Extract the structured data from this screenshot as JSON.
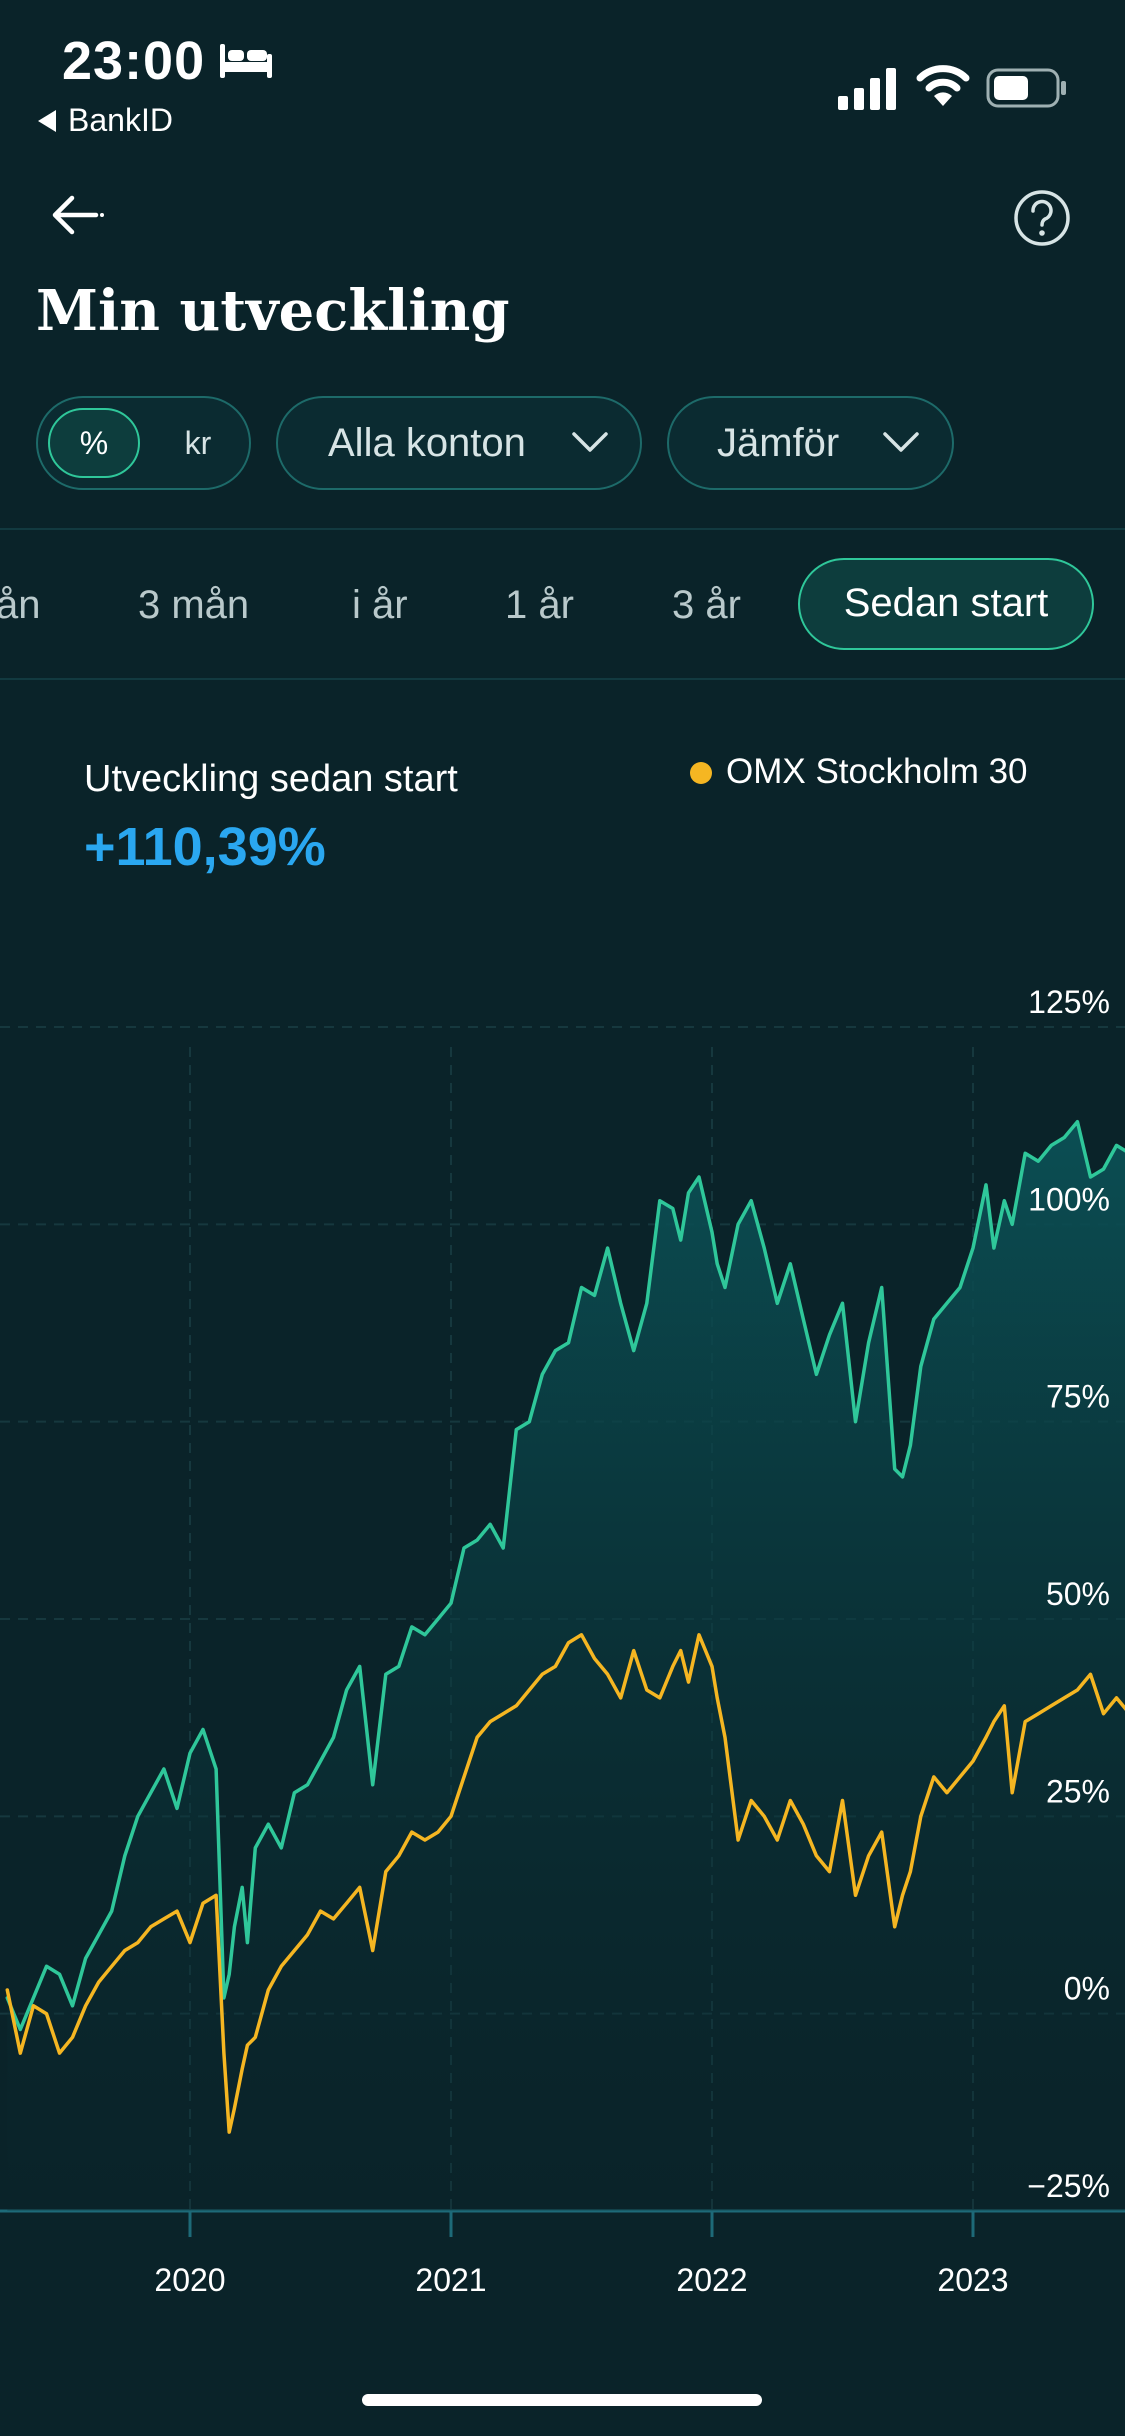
{
  "status_bar": {
    "time": "23:00",
    "back_app": "BankID",
    "icons": [
      "bed-icon",
      "signal-icon",
      "wifi-icon",
      "battery-icon"
    ]
  },
  "header": {
    "title": "Min utveckling",
    "icons": [
      "back-arrow-icon",
      "help-icon"
    ]
  },
  "filters": {
    "unit_options": [
      "%",
      "kr"
    ],
    "unit_selected": "%",
    "accounts": "Alla konton",
    "compare": "Jämför"
  },
  "period_tabs": {
    "items": [
      "ån",
      "3 mån",
      "i år",
      "1 år",
      "3 år",
      "Sedan start"
    ],
    "selected": "Sedan start"
  },
  "summary": {
    "label": "Utveckling sedan start",
    "value": "+110,39%"
  },
  "colors": {
    "background": "#0a2329",
    "portfolio_line": "#2fc79a",
    "benchmark_line": "#f5b622",
    "value_text": "#2aa7f0"
  },
  "chart_data": {
    "type": "line",
    "title": "",
    "xlabel": "",
    "ylabel": "",
    "ylim": [
      -25,
      125
    ],
    "y_ticks": [
      "125%",
      "100%",
      "75%",
      "50%",
      "25%",
      "0%",
      "−25%"
    ],
    "x_ticks": [
      "2020",
      "2021",
      "2022",
      "2023"
    ],
    "xlim": [
      2019.3,
      2023.6
    ],
    "grid": true,
    "legend": "top-right",
    "series": [
      {
        "name": "",
        "color": "#2fc79a",
        "fill": true,
        "x": [
          2019.3,
          2019.35,
          2019.4,
          2019.45,
          2019.5,
          2019.55,
          2019.6,
          2019.65,
          2019.7,
          2019.75,
          2019.8,
          2019.85,
          2019.9,
          2019.95,
          2020.0,
          2020.05,
          2020.1,
          2020.13,
          2020.15,
          2020.17,
          2020.2,
          2020.22,
          2020.25,
          2020.3,
          2020.35,
          2020.4,
          2020.45,
          2020.5,
          2020.55,
          2020.6,
          2020.65,
          2020.7,
          2020.75,
          2020.8,
          2020.85,
          2020.9,
          2020.95,
          2021.0,
          2021.05,
          2021.1,
          2021.15,
          2021.2,
          2021.25,
          2021.3,
          2021.35,
          2021.4,
          2021.45,
          2021.5,
          2021.55,
          2021.6,
          2021.65,
          2021.7,
          2021.75,
          2021.8,
          2021.85,
          2021.88,
          2021.91,
          2021.95,
          2022.0,
          2022.02,
          2022.05,
          2022.1,
          2022.15,
          2022.2,
          2022.25,
          2022.3,
          2022.35,
          2022.4,
          2022.45,
          2022.5,
          2022.55,
          2022.6,
          2022.65,
          2022.7,
          2022.73,
          2022.76,
          2022.8,
          2022.85,
          2022.9,
          2022.95,
          2023.0,
          2023.05,
          2023.08,
          2023.12,
          2023.15,
          2023.2,
          2023.25,
          2023.3,
          2023.35,
          2023.4,
          2023.45,
          2023.5,
          2023.55,
          2023.6
        ],
        "y": [
          2,
          -2,
          2,
          6,
          5,
          1,
          7,
          10,
          13,
          20,
          25,
          28,
          31,
          26,
          33,
          36,
          31,
          2,
          5,
          11,
          16,
          9,
          21,
          24,
          21,
          28,
          29,
          32,
          35,
          41,
          44,
          29,
          43,
          44,
          49,
          48,
          50,
          52,
          59,
          60,
          62,
          59,
          74,
          75,
          81,
          84,
          85,
          92,
          91,
          97,
          90,
          84,
          90,
          103,
          102,
          98,
          104,
          106,
          99,
          95,
          92,
          100,
          103,
          97,
          90,
          95,
          88,
          81,
          86,
          90,
          75,
          85,
          92,
          69,
          68,
          72,
          82,
          88,
          90,
          92,
          97,
          105,
          97,
          103,
          100,
          109,
          108,
          110,
          111,
          113,
          106,
          107,
          110,
          109
        ]
      },
      {
        "name": "OMX Stockholm 30",
        "color": "#f5b622",
        "fill": false,
        "x": [
          2019.3,
          2019.35,
          2019.4,
          2019.45,
          2019.5,
          2019.55,
          2019.6,
          2019.65,
          2019.7,
          2019.75,
          2019.8,
          2019.85,
          2019.9,
          2019.95,
          2020.0,
          2020.05,
          2020.1,
          2020.13,
          2020.15,
          2020.17,
          2020.2,
          2020.22,
          2020.25,
          2020.3,
          2020.35,
          2020.4,
          2020.45,
          2020.5,
          2020.55,
          2020.6,
          2020.65,
          2020.7,
          2020.75,
          2020.8,
          2020.85,
          2020.9,
          2020.95,
          2021.0,
          2021.05,
          2021.1,
          2021.15,
          2021.2,
          2021.25,
          2021.3,
          2021.35,
          2021.4,
          2021.45,
          2021.5,
          2021.55,
          2021.6,
          2021.65,
          2021.7,
          2021.75,
          2021.8,
          2021.85,
          2021.88,
          2021.91,
          2021.95,
          2022.0,
          2022.02,
          2022.05,
          2022.1,
          2022.15,
          2022.2,
          2022.25,
          2022.3,
          2022.35,
          2022.4,
          2022.45,
          2022.5,
          2022.55,
          2022.6,
          2022.65,
          2022.7,
          2022.73,
          2022.76,
          2022.8,
          2022.85,
          2022.9,
          2022.95,
          2023.0,
          2023.05,
          2023.08,
          2023.12,
          2023.15,
          2023.2,
          2023.25,
          2023.3,
          2023.35,
          2023.4,
          2023.45,
          2023.5,
          2023.55,
          2023.6
        ],
        "y": [
          3,
          -5,
          1,
          0,
          -5,
          -3,
          1,
          4,
          6,
          8,
          9,
          11,
          12,
          13,
          9,
          14,
          15,
          -5,
          -15,
          -12,
          -7,
          -4,
          -3,
          3,
          6,
          8,
          10,
          13,
          12,
          14,
          16,
          8,
          18,
          20,
          23,
          22,
          23,
          25,
          30,
          35,
          37,
          38,
          39,
          41,
          43,
          44,
          47,
          48,
          45,
          43,
          40,
          46,
          41,
          40,
          44,
          46,
          42,
          48,
          44,
          40,
          35,
          22,
          27,
          25,
          22,
          27,
          24,
          20,
          18,
          27,
          15,
          20,
          23,
          11,
          15,
          18,
          25,
          30,
          28,
          30,
          32,
          35,
          37,
          39,
          28,
          37,
          38,
          39,
          40,
          41,
          43,
          38,
          40,
          38
        ]
      }
    ]
  }
}
